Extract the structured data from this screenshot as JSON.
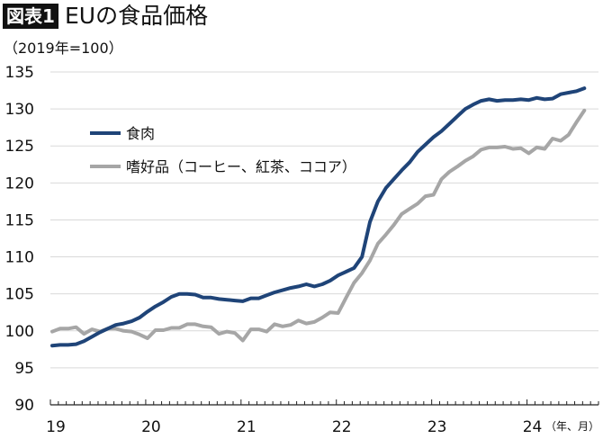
{
  "header": {
    "badge": "図表1",
    "title": "EUの食品価格"
  },
  "chart_data": {
    "type": "line",
    "title": "EUの食品価格",
    "ylabel": "（2019年=100）",
    "xlabel": "（年、月）",
    "ylim": [
      90,
      135
    ],
    "yticks": [
      90,
      95,
      100,
      105,
      110,
      115,
      120,
      125,
      130,
      135
    ],
    "xticks": [
      "19",
      "20",
      "21",
      "22",
      "23",
      "24"
    ],
    "x_start": "2019-01",
    "x_frequency": "monthly",
    "grid": true,
    "legend_position": "top-left",
    "colors": {
      "meat": "#1f4478",
      "luxury": "#a6a6a6"
    },
    "series": [
      {
        "name": "食肉",
        "color": "#1f4478",
        "values": [
          98.0,
          98.1,
          98.1,
          98.2,
          98.6,
          99.2,
          99.8,
          100.3,
          100.8,
          101.0,
          101.3,
          101.8,
          102.6,
          103.3,
          103.9,
          104.6,
          105.0,
          105.0,
          104.9,
          104.5,
          104.5,
          104.3,
          104.2,
          104.1,
          104.0,
          104.4,
          104.4,
          104.8,
          105.2,
          105.5,
          105.8,
          106.0,
          106.3,
          106.0,
          106.3,
          106.8,
          107.5,
          108.0,
          108.5,
          110.0,
          114.7,
          117.5,
          119.3,
          120.5,
          121.7,
          122.8,
          124.2,
          125.2,
          126.2,
          127.0,
          128.0,
          129.0,
          130.0,
          130.6,
          131.1,
          131.3,
          131.1,
          131.2,
          131.2,
          131.3,
          131.2,
          131.5,
          131.3,
          131.4,
          132.0,
          132.2,
          132.4,
          132.8
        ]
      },
      {
        "name": "嗜好品（コーヒー、紅茶、ココア）",
        "color": "#a6a6a6",
        "values": [
          99.9,
          100.3,
          100.3,
          100.5,
          99.6,
          100.2,
          99.9,
          100.3,
          100.3,
          100.0,
          99.9,
          99.5,
          99.0,
          100.1,
          100.1,
          100.4,
          100.4,
          100.9,
          100.9,
          100.6,
          100.5,
          99.6,
          99.9,
          99.7,
          98.7,
          100.2,
          100.2,
          99.9,
          100.9,
          100.6,
          100.8,
          101.4,
          101.0,
          101.2,
          101.8,
          102.5,
          102.4,
          104.5,
          106.5,
          107.8,
          109.5,
          111.8,
          113.0,
          114.3,
          115.8,
          116.5,
          117.2,
          118.2,
          118.4,
          120.5,
          121.5,
          122.2,
          123.0,
          123.6,
          124.5,
          124.8,
          124.8,
          124.9,
          124.6,
          124.7,
          124.0,
          124.8,
          124.6,
          126.0,
          125.7,
          126.5,
          128.2,
          129.8
        ]
      }
    ]
  }
}
